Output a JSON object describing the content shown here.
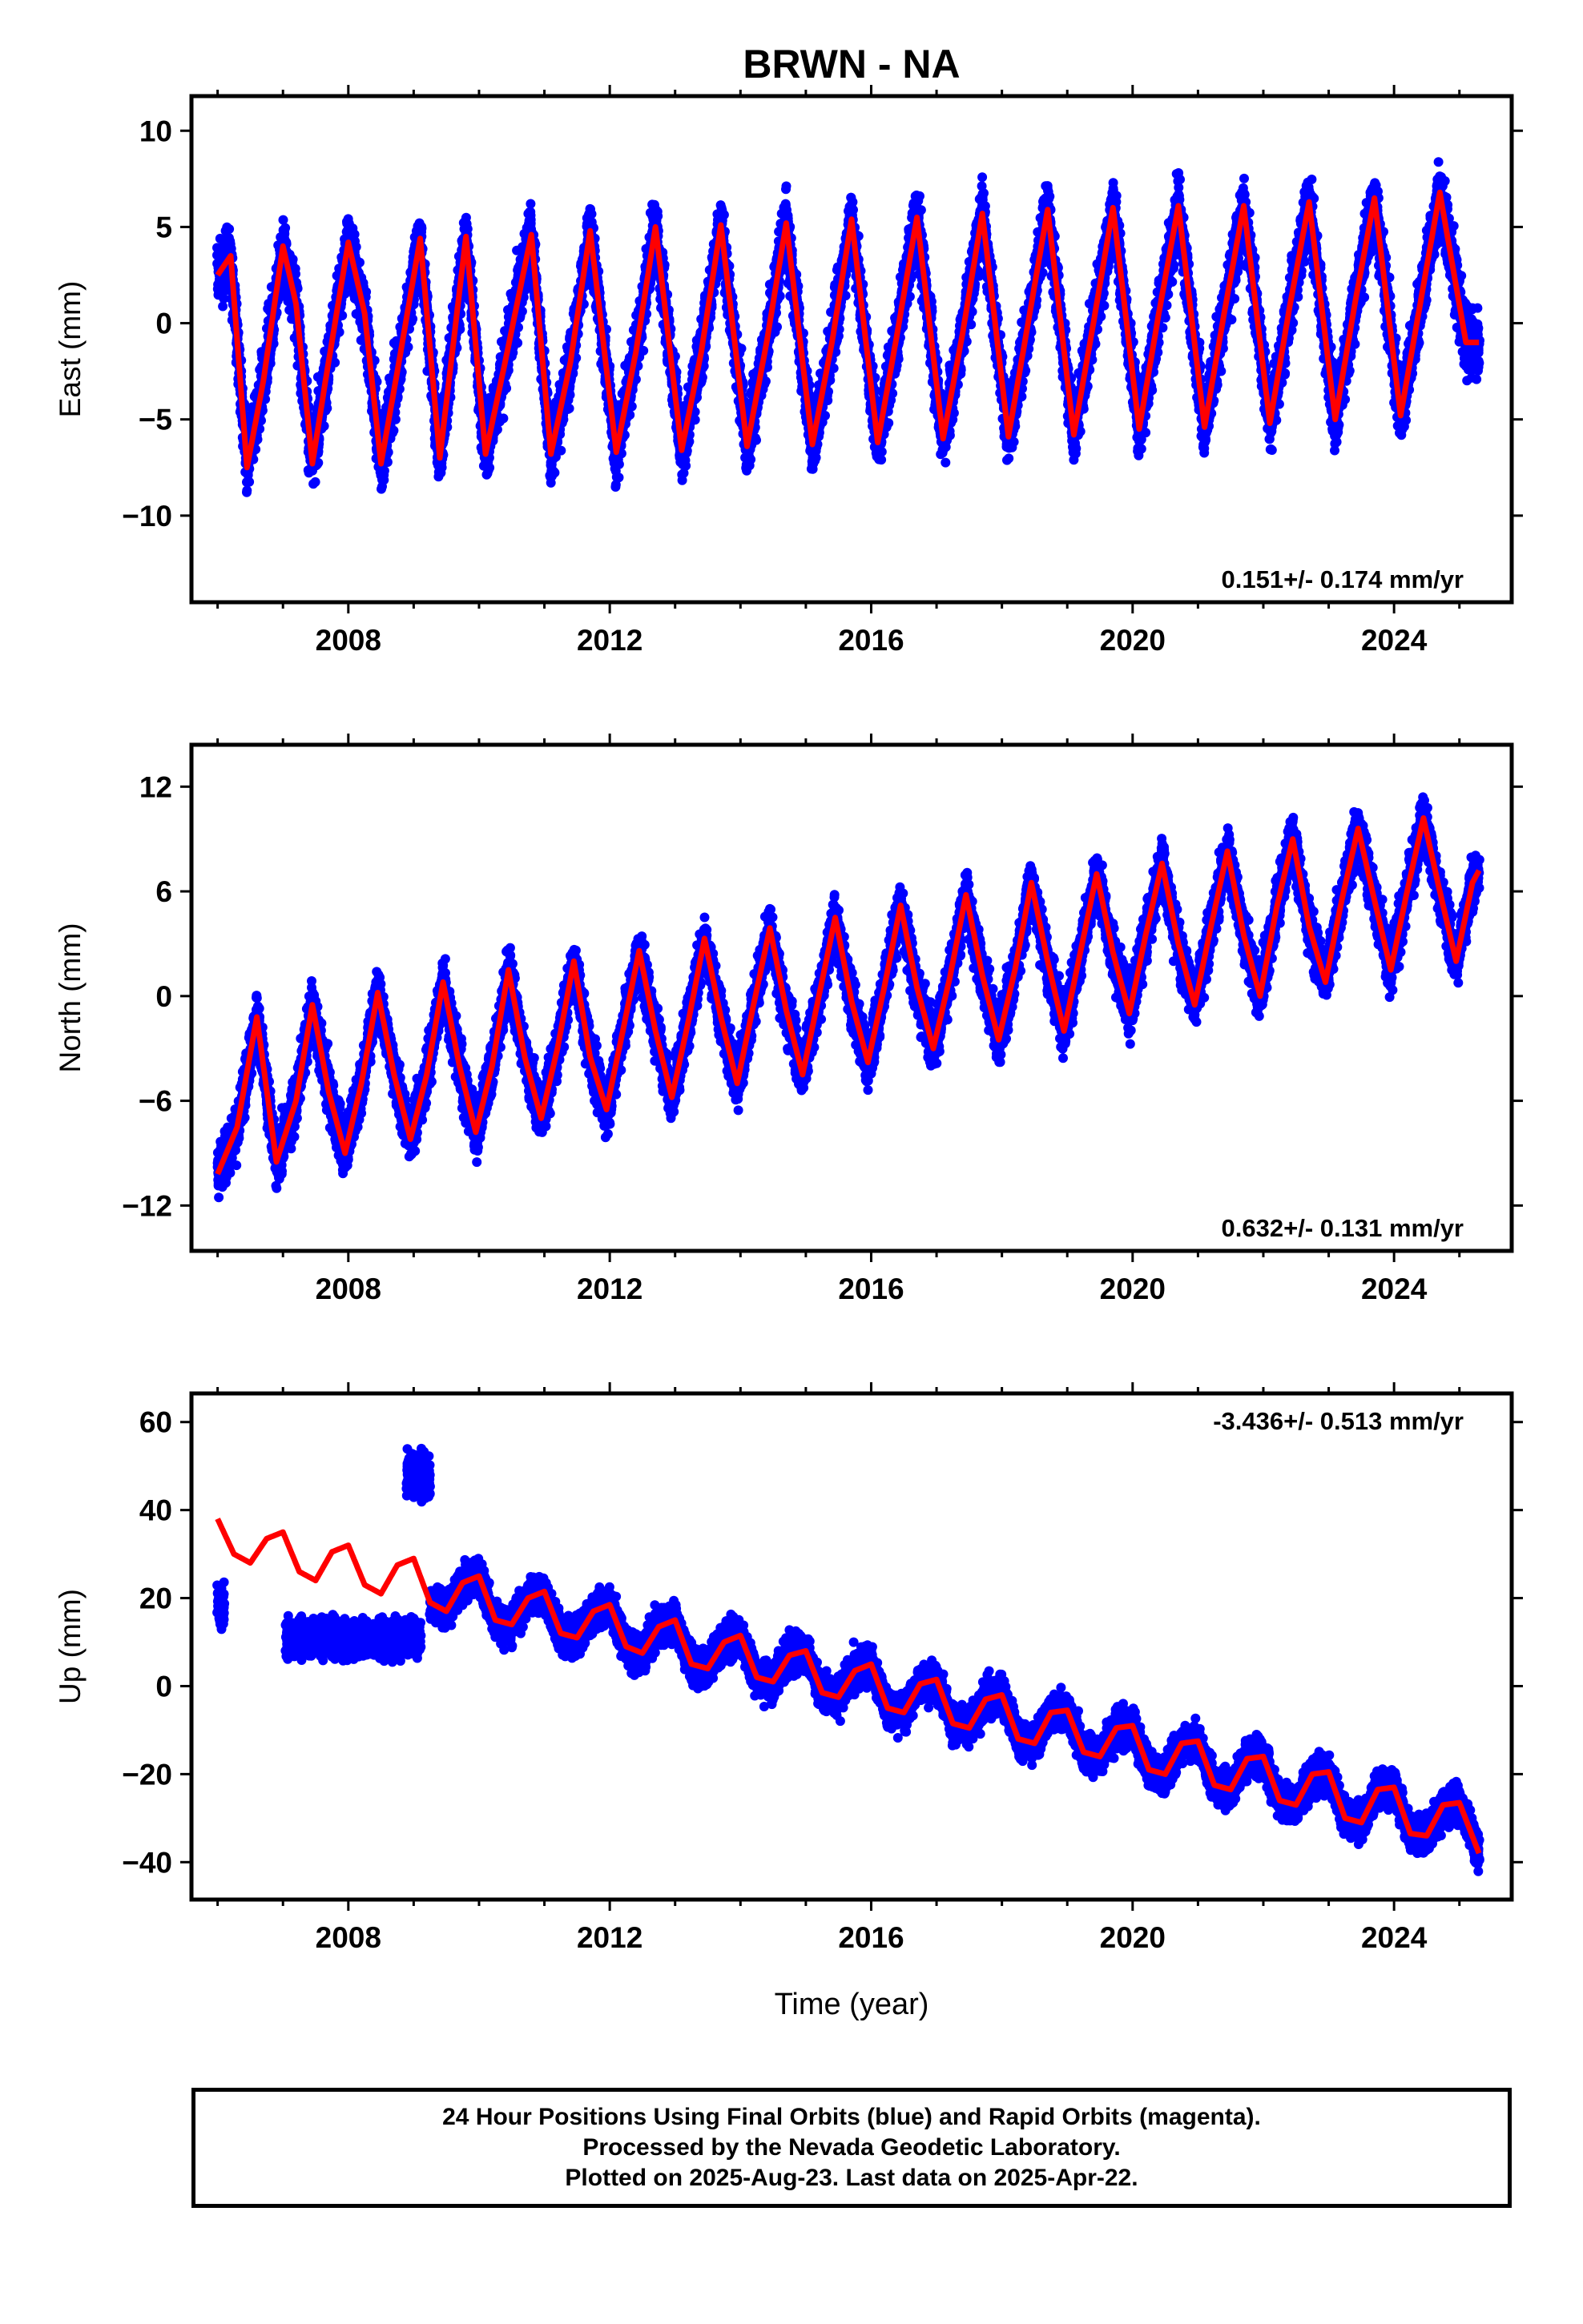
{
  "title": "BRWN - NA",
  "x_axis_label": "Time (year)",
  "footer": {
    "line1": "24 Hour Positions Using Final Orbits (blue) and Rapid Orbits (magenta).",
    "line2": "Processed by the Nevada Geodetic Laboratory.",
    "line3": "Plotted on 2025-Aug-23. Last data on 2025-Apr-22."
  },
  "colors": {
    "final_orbits": "#0000ff",
    "model_fit": "#ff0000",
    "axes": "#000000"
  },
  "chart_data": [
    {
      "type": "scatter",
      "ylabel": "East (mm)",
      "xlim": [
        2005.6,
        2025.8
      ],
      "ylim": [
        -14.5,
        11.8
      ],
      "xticks": [
        2008,
        2012,
        2016,
        2020,
        2024
      ],
      "yticks": [
        -10,
        -5,
        0,
        5,
        10
      ],
      "rate_label": "0.151+/- 0.174 mm/yr",
      "rate_label_position": "bottom-right",
      "series": [
        {
          "role": "observations",
          "x_range": [
            2006.0,
            2025.3
          ],
          "trend_at_start": -0.5,
          "trend_at_end": 2.4,
          "annual_amplitude": 5.5,
          "scatter": 2.0
        },
        {
          "role": "model",
          "x": [
            2006.0,
            2006.2,
            2006.45,
            2006.7,
            2007.0,
            2007.2,
            2007.45,
            2007.65,
            2008.0,
            2008.25,
            2008.5,
            2008.75,
            2009.1,
            2009.4,
            2009.8,
            2010.1,
            2010.4,
            2010.8,
            2011.1,
            2011.4,
            2011.7,
            2012.1,
            2012.4,
            2012.7,
            2013.1,
            2013.4,
            2013.7,
            2014.1,
            2014.4,
            2014.7,
            2015.1,
            2015.4,
            2015.7,
            2016.1,
            2016.4,
            2016.7,
            2017.1,
            2017.4,
            2017.7,
            2018.1,
            2018.4,
            2018.7,
            2019.1,
            2019.4,
            2019.7,
            2020.1,
            2020.4,
            2020.7,
            2021.1,
            2021.4,
            2021.7,
            2022.1,
            2022.4,
            2022.7,
            2023.1,
            2023.4,
            2023.7,
            2024.1,
            2024.4,
            2024.7,
            2025.1,
            2025.3
          ],
          "y": [
            2.5,
            3.5,
            -7.5,
            -3.0,
            4.0,
            1.0,
            -7.3,
            -3.0,
            4.2,
            0.5,
            -7.3,
            -2.5,
            4.4,
            -7.0,
            4.5,
            -6.8,
            -2.0,
            4.6,
            -6.8,
            -2.0,
            4.8,
            -6.7,
            -1.5,
            5.0,
            -6.6,
            -1.5,
            5.1,
            -6.4,
            -1.0,
            5.2,
            -6.3,
            -1.0,
            5.4,
            -6.2,
            -0.5,
            5.5,
            -6.0,
            -0.5,
            5.7,
            -5.9,
            0.0,
            5.9,
            -5.8,
            0.0,
            6.0,
            -5.5,
            0.5,
            6.1,
            -5.4,
            0.5,
            6.1,
            -5.2,
            0.8,
            6.3,
            -5.0,
            1.0,
            6.5,
            -4.8,
            1.0,
            6.8,
            -1.0,
            -1.0
          ]
        }
      ]
    },
    {
      "type": "scatter",
      "ylabel": "North (mm)",
      "xlim": [
        2005.6,
        2025.8
      ],
      "ylim": [
        -14.6,
        14.4
      ],
      "xticks": [
        2008,
        2012,
        2016,
        2020,
        2024
      ],
      "yticks": [
        -12,
        -6,
        0,
        6,
        12
      ],
      "rate_label": "0.632+/- 0.131 mm/yr",
      "rate_label_position": "bottom-right",
      "series": [
        {
          "role": "observations",
          "x_range": [
            2006.0,
            2025.3
          ],
          "trend_at_start": -5.5,
          "trend_at_end": 6.0,
          "annual_amplitude": 4.2,
          "scatter": 1.8
        },
        {
          "role": "model",
          "x": [
            2006.0,
            2006.3,
            2006.6,
            2006.9,
            2007.2,
            2007.45,
            2007.7,
            2007.95,
            2008.2,
            2008.45,
            2008.7,
            2008.95,
            2009.2,
            2009.45,
            2009.7,
            2009.95,
            2010.2,
            2010.45,
            2010.7,
            2010.95,
            2011.2,
            2011.45,
            2011.7,
            2011.95,
            2012.2,
            2012.45,
            2012.7,
            2012.95,
            2013.2,
            2013.45,
            2013.7,
            2013.95,
            2014.2,
            2014.45,
            2014.7,
            2014.95,
            2015.2,
            2015.45,
            2015.7,
            2015.95,
            2016.2,
            2016.45,
            2016.7,
            2016.95,
            2017.2,
            2017.45,
            2017.7,
            2017.95,
            2018.2,
            2018.45,
            2018.7,
            2018.95,
            2019.2,
            2019.45,
            2019.7,
            2019.95,
            2020.2,
            2020.45,
            2020.7,
            2020.95,
            2021.2,
            2021.45,
            2021.7,
            2021.95,
            2022.2,
            2022.45,
            2022.7,
            2022.95,
            2023.2,
            2023.45,
            2023.7,
            2023.95,
            2024.2,
            2024.45,
            2024.7,
            2024.95,
            2025.2,
            2025.3
          ],
          "y": [
            -10.2,
            -7.5,
            -1.2,
            -9.5,
            -6.0,
            -0.5,
            -5.5,
            -9.0,
            -5.0,
            0.2,
            -4.5,
            -8.2,
            -4.5,
            0.8,
            -4.0,
            -7.8,
            -4.0,
            1.5,
            -3.5,
            -7.0,
            -3.0,
            2.0,
            -3.5,
            -6.5,
            -2.0,
            2.6,
            -2.0,
            -5.8,
            -1.5,
            3.3,
            -1.2,
            -5.0,
            -0.5,
            3.9,
            -0.8,
            -4.5,
            0.0,
            4.5,
            -0.3,
            -3.8,
            0.5,
            5.2,
            0.5,
            -3.0,
            1.0,
            5.8,
            1.2,
            -2.5,
            1.5,
            6.5,
            2.0,
            -2.0,
            2.5,
            7.0,
            2.5,
            -1.0,
            3.5,
            7.6,
            3.0,
            -0.5,
            4.0,
            8.3,
            3.5,
            0.0,
            5.0,
            9.0,
            4.0,
            0.8,
            5.5,
            9.6,
            5.5,
            1.5,
            6.0,
            10.2,
            6.0,
            2.0,
            6.5,
            7.2
          ]
        }
      ]
    },
    {
      "type": "scatter",
      "ylabel": "Up (mm)",
      "xlim": [
        2005.6,
        2025.8
      ],
      "ylim": [
        -48.5,
        66.5
      ],
      "xticks": [
        2008,
        2012,
        2016,
        2020,
        2024
      ],
      "yticks": [
        -40,
        -20,
        0,
        20,
        40,
        60
      ],
      "rate_label": "-3.436+/- 0.513 mm/yr",
      "rate_label_position": "top-right",
      "series": [
        {
          "role": "observations",
          "segments": [
            {
              "x_range": [
                2006.0,
                2006.1
              ],
              "center": 18,
              "scatter": 6
            },
            {
              "x_range": [
                2007.05,
                2009.1
              ],
              "center": 11,
              "scatter": 5
            },
            {
              "x_range": [
                2008.9,
                2009.25
              ],
              "center": 48,
              "scatter": 6
            },
            {
              "x_range": [
                2009.25,
                2025.3
              ],
              "trend_at_start": 22,
              "trend_at_end": -30,
              "annual_amplitude": 5,
              "scatter": 5
            }
          ]
        },
        {
          "role": "model",
          "x": [
            2006.0,
            2006.25,
            2006.5,
            2006.75,
            2007.0,
            2007.25,
            2007.5,
            2007.75,
            2008.0,
            2008.25,
            2008.5,
            2008.75,
            2009.0,
            2009.25,
            2009.5,
            2009.75,
            2010.0,
            2010.25,
            2010.5,
            2010.75,
            2011.0,
            2011.25,
            2011.5,
            2011.75,
            2012.0,
            2012.25,
            2012.5,
            2012.75,
            2013.0,
            2013.25,
            2013.5,
            2013.75,
            2014.0,
            2014.25,
            2014.5,
            2014.75,
            2015.0,
            2015.25,
            2015.5,
            2015.75,
            2016.0,
            2016.25,
            2016.5,
            2016.75,
            2017.0,
            2017.25,
            2017.5,
            2017.75,
            2018.0,
            2018.25,
            2018.5,
            2018.75,
            2019.0,
            2019.25,
            2019.5,
            2019.75,
            2020.0,
            2020.25,
            2020.5,
            2020.75,
            2021.0,
            2021.25,
            2021.5,
            2021.75,
            2022.0,
            2022.25,
            2022.5,
            2022.75,
            2023.0,
            2023.25,
            2023.5,
            2023.75,
            2024.0,
            2024.25,
            2024.5,
            2024.75,
            2025.0,
            2025.3
          ],
          "y": [
            38.0,
            30.0,
            28.0,
            33.5,
            35.0,
            26.0,
            24.0,
            30.5,
            32.0,
            23.0,
            21.0,
            27.5,
            29.0,
            19.0,
            17.0,
            23.5,
            25.0,
            15.0,
            14.0,
            20.0,
            21.5,
            12.0,
            11.0,
            17.0,
            18.5,
            9.0,
            7.5,
            13.5,
            15.0,
            5.0,
            4.0,
            10.0,
            11.5,
            2.0,
            1.0,
            7.0,
            8.0,
            -1.5,
            -2.5,
            3.5,
            5.0,
            -5.0,
            -6.0,
            0.5,
            1.5,
            -8.5,
            -9.5,
            -3.0,
            -2.0,
            -12.0,
            -13.0,
            -6.0,
            -5.5,
            -15.0,
            -16.0,
            -9.5,
            -9.0,
            -19.0,
            -20.0,
            -13.0,
            -12.5,
            -22.5,
            -23.5,
            -16.5,
            -16.0,
            -26.0,
            -27.0,
            -20.0,
            -19.5,
            -30.0,
            -31.0,
            -23.5,
            -23.0,
            -33.5,
            -34.0,
            -27.0,
            -26.5,
            -38.0
          ]
        }
      ]
    }
  ]
}
